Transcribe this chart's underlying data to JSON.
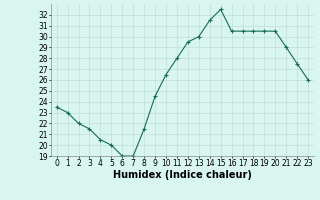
{
  "xlabel": "Humidex (Indice chaleur)",
  "x": [
    0,
    1,
    2,
    3,
    4,
    5,
    6,
    7,
    8,
    9,
    10,
    11,
    12,
    13,
    14,
    15,
    16,
    17,
    18,
    19,
    20,
    21,
    22,
    23
  ],
  "y": [
    23.5,
    23.0,
    22.0,
    21.5,
    20.5,
    20.0,
    19.0,
    19.0,
    21.5,
    24.5,
    26.5,
    28.0,
    29.5,
    30.0,
    31.5,
    32.5,
    30.5,
    30.5,
    30.5,
    30.5,
    30.5,
    29.0,
    27.5,
    26.0
  ],
  "line_color": "#1a6b5a",
  "marker": "+",
  "bg_color": "#d8f5f0",
  "grid_color": "#c0ddd8",
  "ylim": [
    19,
    33
  ],
  "xlim": [
    -0.5,
    23.5
  ],
  "yticks": [
    19,
    20,
    21,
    22,
    23,
    24,
    25,
    26,
    27,
    28,
    29,
    30,
    31,
    32
  ],
  "xticks": [
    0,
    1,
    2,
    3,
    4,
    5,
    6,
    7,
    8,
    9,
    10,
    11,
    12,
    13,
    14,
    15,
    16,
    17,
    18,
    19,
    20,
    21,
    22,
    23
  ],
  "tick_fontsize": 5.5,
  "label_fontsize": 7,
  "linewidth": 0.8,
  "markersize": 3.5,
  "spine_color": "#888888"
}
